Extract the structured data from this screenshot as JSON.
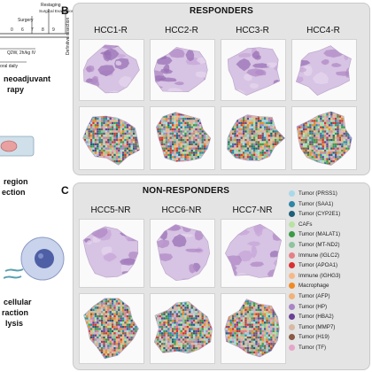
{
  "panel_a": {
    "timeline": {
      "restaging_label": "Restaging",
      "surgical_evaluation_label": "Surgical Evaluation",
      "surgery_label": "Surgery",
      "definitive_resection_label": "Definitive resection",
      "ticks": [
        "0",
        "6",
        "7",
        "8",
        "9"
      ],
      "dose_label": "Q2W, 2h/kg IV",
      "oral_label": "oral daily"
    },
    "caption_neoadjuvant_1": "neoadjuvant",
    "caption_neoadjuvant_2": "rapy",
    "caption_region_1": "region",
    "caption_region_2": "ection",
    "caption_cellular_1": "cellular",
    "caption_cellular_2": "raction",
    "caption_cellular_3": "lysis"
  },
  "panel_b": {
    "letter": "B",
    "title": "RESPONDERS",
    "samples": [
      "HCC1-R",
      "HCC2-R",
      "HCC3-R",
      "HCC4-R"
    ]
  },
  "panel_c": {
    "letter": "C",
    "title": "NON-RESPONDERS",
    "samples": [
      "HCC5-NR",
      "HCC6-NR",
      "HCC7-NR"
    ]
  },
  "legend": {
    "items": [
      {
        "label": "Tumor (PRSS1)",
        "color": "#a9d8ea"
      },
      {
        "label": "Tumor (SAA1)",
        "color": "#2f86a6"
      },
      {
        "label": "Tumor (CYP2E1)",
        "color": "#1f5f7a"
      },
      {
        "label": "CAFs",
        "color": "#b7e3a1"
      },
      {
        "label": "Tumor (MALAT1)",
        "color": "#3a9b46"
      },
      {
        "label": "Tumor (MT-ND2)",
        "color": "#8fc3a0"
      },
      {
        "label": "Immune (IGLC2)",
        "color": "#e57f86"
      },
      {
        "label": "Tumor (APOA1)",
        "color": "#d9302f"
      },
      {
        "label": "Immune (IGHG3)",
        "color": "#f6b889"
      },
      {
        "label": "Macrophage",
        "color": "#f08a24"
      },
      {
        "label": "Tumor (AFP)",
        "color": "#f0b27a"
      },
      {
        "label": "Tumor (HP)",
        "color": "#a885c6"
      },
      {
        "label": "Tumor (HBA2)",
        "color": "#6a3f96"
      },
      {
        "label": "Tumor (MMP7)",
        "color": "#d8b9a4"
      },
      {
        "label": "Tumor (H19)",
        "color": "#8a5a44"
      },
      {
        "label": "Tumor (TF)",
        "color": "#e6a6c9"
      }
    ]
  }
}
